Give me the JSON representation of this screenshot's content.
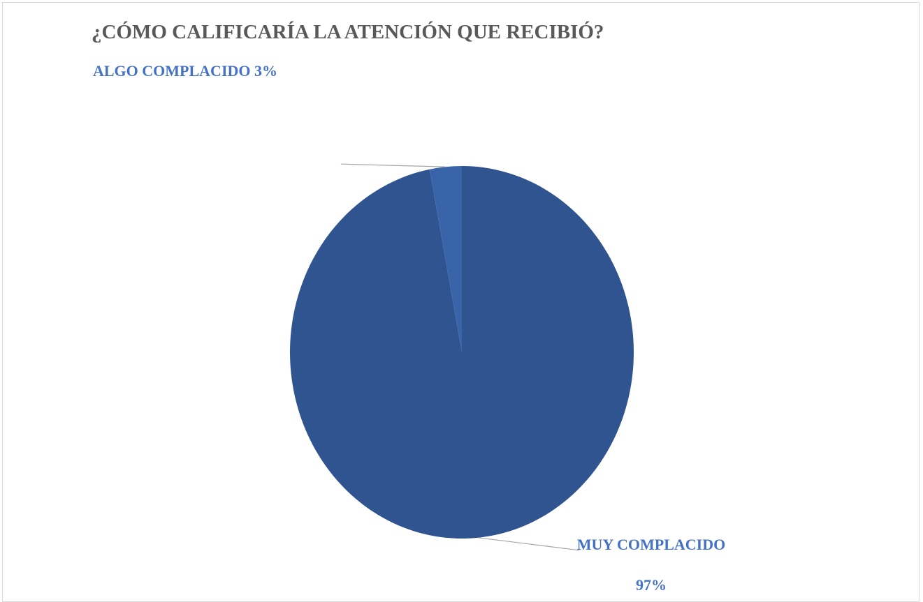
{
  "chart_data": {
    "type": "pie",
    "title": "¿CÓMO CALIFICARÍA LA ATENCIÓN QUE RECIBIÓ?",
    "categories": [
      "MUY COMPLACIDO",
      "ALGO COMPLACIDO"
    ],
    "values": [
      97,
      3
    ],
    "unit": "%",
    "data_labels": [
      {
        "name": "MUY COMPLACIDO",
        "value": "97%"
      },
      {
        "name": "ALGO COMPLACIDO",
        "value": "3%"
      }
    ],
    "colors": [
      "#2f5490",
      "#3a64aa"
    ],
    "label_color": "#4472c4",
    "leader_line_color": "#a6a6a6",
    "legend": "none"
  }
}
